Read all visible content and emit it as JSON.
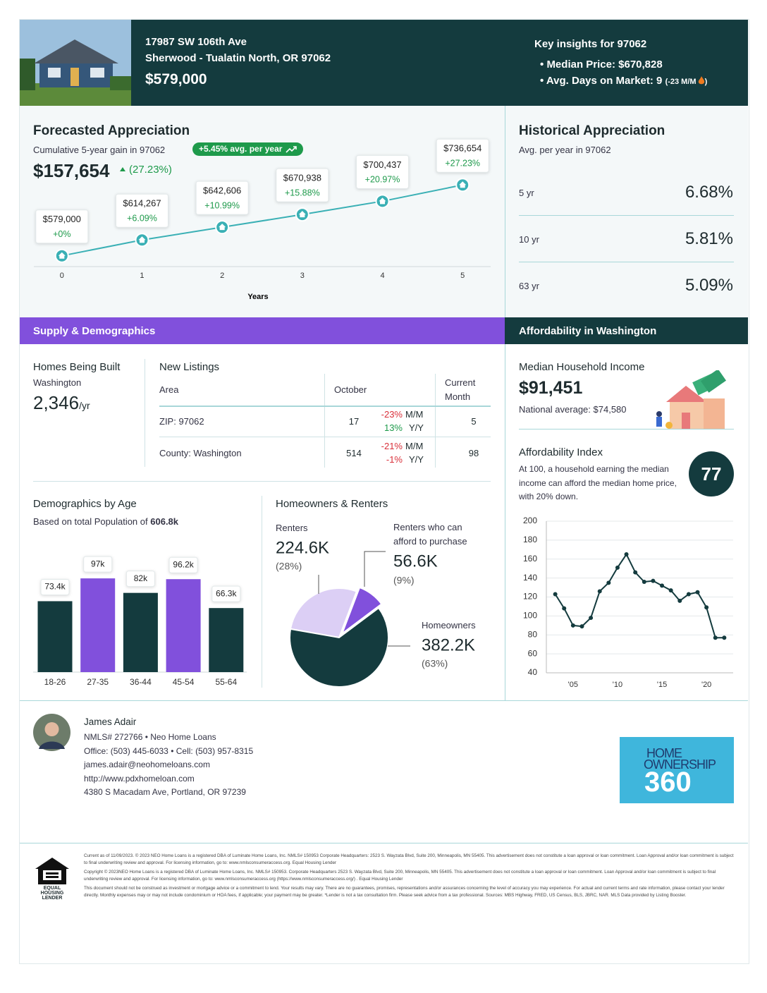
{
  "header": {
    "address": "17987 SW 106th Ave",
    "location": "Sherwood - Tualatin North, OR 97062",
    "price": "$579,000",
    "insights_title": "Key insights for 97062",
    "insights": [
      {
        "text": "Median Price: $670,828"
      },
      {
        "text": "Avg. Days on Market: 9",
        "note": "(-23 M/M",
        "note_close": ")"
      }
    ]
  },
  "historical": {
    "title": "Historical Appreciation",
    "subtitle": "Avg. per year in 97062",
    "rows": [
      {
        "label": "5 yr",
        "value": "6.68%"
      },
      {
        "label": "10 yr",
        "value": "5.81%"
      },
      {
        "label": "63 yr",
        "value": "5.09%"
      }
    ]
  },
  "sections": {
    "supply": "Supply & Demographics",
    "affordability": "Affordability in Washington"
  },
  "homes_built": {
    "title": "Homes Being Built",
    "subtitle": "Washington",
    "value": "2,346",
    "unit": "/yr"
  },
  "new_listings": {
    "title": "New Listings",
    "headers": [
      "Area",
      "October",
      "Current Month"
    ],
    "rows": [
      {
        "area": "ZIP: 97062",
        "october": "17",
        "mm": "-23%",
        "mm_unit": "M/M",
        "yy": "13%",
        "yy_unit": "Y/Y",
        "current": "5"
      },
      {
        "area": "County: Washington",
        "october": "514",
        "mm": "-21%",
        "mm_unit": "M/M",
        "yy": "-1%",
        "yy_unit": "Y/Y",
        "current": "98"
      }
    ]
  },
  "income": {
    "title": "Median Household Income",
    "value": "$91,451",
    "note": "National average: $74,580"
  },
  "affordability_index": {
    "title": "Affordability Index",
    "description": "At 100, a household earning the median income can afford the median home price, with 20% down.",
    "value": "77"
  },
  "chart_data": [
    {
      "type": "line",
      "title": "Forecasted Appreciation",
      "subtitle": "Cumulative 5-year gain in 97062",
      "badge": "+5.45% avg. per year",
      "summary_value": "$157,654",
      "summary_change": "(27.23%)",
      "x_label": "Years",
      "x": [
        0,
        1,
        2,
        3,
        4,
        5
      ],
      "xlim": [
        -0.35,
        5.35
      ],
      "xticks": [
        0,
        1,
        2,
        3,
        4,
        5
      ],
      "ylim": [
        555000,
        850000
      ],
      "series": [
        {
          "color": "#3ab0b5",
          "values": [
            579000,
            614267,
            642606,
            670938,
            700437,
            736654
          ],
          "value_labels": [
            "$579,000",
            "$614,267",
            "$642,606",
            "$670,938",
            "$700,437",
            "$736,654"
          ],
          "change_labels": [
            "+0%",
            "+6.09%",
            "+10.99%",
            "+15.88%",
            "+20.97%",
            "+27.23%"
          ]
        }
      ]
    },
    {
      "type": "bar",
      "title": "Demographics by Age",
      "subtitle": "Based on total Population of",
      "subtitle_value": "606.8k",
      "categories": [
        "18-26",
        "27-35",
        "36-44",
        "45-54",
        "55-64"
      ],
      "values": [
        73.4,
        97,
        82,
        96.2,
        66.3
      ],
      "value_labels": [
        "73.4k",
        "97k",
        "82k",
        "96.2k",
        "66.3k"
      ],
      "colors": [
        "#143b3e",
        "#8150dc",
        "#143b3e",
        "#8150dc",
        "#143b3e"
      ],
      "ylim": [
        0,
        100
      ]
    },
    {
      "type": "pie",
      "title": "Homeowners & Renters",
      "categories": [
        "Renters",
        "Renters who can afford to purchase",
        "Homeowners"
      ],
      "values": [
        224.6,
        56.6,
        382.2
      ],
      "value_labels": [
        "224.6K",
        "56.6K",
        "382.2K"
      ],
      "shares": [
        28,
        9,
        63
      ],
      "share_labels": [
        "(28%)",
        "(9%)",
        "(63%)"
      ],
      "colors": [
        "#dccff5",
        "#8150dc",
        "#143b3e"
      ]
    },
    {
      "type": "line",
      "x": [
        2003,
        2004,
        2005,
        2006,
        2007,
        2008,
        2009,
        2010,
        2011,
        2012,
        2013,
        2014,
        2015,
        2016,
        2017,
        2018,
        2019,
        2020,
        2021,
        2022
      ],
      "xlim": [
        2002,
        2023
      ],
      "xticks": [
        {
          "value": 2005,
          "label": "'05"
        },
        {
          "value": 2010,
          "label": "'10"
        },
        {
          "value": 2015,
          "label": "'15"
        },
        {
          "value": 2020,
          "label": "'20"
        }
      ],
      "ylim": [
        40,
        200
      ],
      "yticks": [
        40,
        60,
        80,
        100,
        120,
        140,
        160,
        180,
        200
      ],
      "grid": true,
      "series": [
        {
          "color": "#143b3e",
          "values": [
            123,
            108,
            90,
            89,
            98,
            126,
            135,
            151,
            165,
            146,
            136,
            137,
            132,
            127,
            116,
            123,
            125,
            109,
            77,
            77
          ]
        }
      ]
    }
  ],
  "agent": {
    "name": "James Adair",
    "lines": [
      "NMLS# 272766 • Neo Home Loans",
      "Office: (503) 445-6033 • Cell: (503) 957-8315",
      "james.adair@neohomeloans.com",
      "http://www.pdxhomeloan.com",
      "4380 S Macadam Ave, Portland, OR 97239"
    ]
  },
  "logo": {
    "line1": "HOME",
    "line2": "OWNERSHIP",
    "line3": "360"
  },
  "footer": {
    "ehl": "EQUAL HOUSING LENDER",
    "disclaimers": [
      "Current as of 11/09/2023. © 2023 NEO Home Loans is a registered DBA of Luminate Home Loans, Inc. NMLS# 150953 Corporate Headquarters: 2523 S. Wayzata Blvd, Suite 200, Minneapolis, MN 55405. This advertisement does not constitute a loan approval or loan commitment. Loan Approval and/or loan commitment is subject to final underwriting review and approval. For licensing information, go to: www.nmlsconsumeraccess.org. Equal Housing Lender",
      "Copyright © 2023NEO Home Loans is a registered DBA of Luminate Home Loans, Inc. NMLS# 150953. Corporate Headquarters 2523 S. Wayzata Blvd, Suite 200, Minneapolis, MN 55405. This advertisement does not constitute a loan approval or loan commitment. Loan Approval and/or loan commitment is subject to final underwriting review and approval. For licensing information, go to: www.nmlsconsumeraccess.org (https://www.nmlsconsumeraccess.org/) . Equal Housing Lender",
      "This document should not be construed as investment or mortgage advice or a commitment to lend. Your results may vary. There are no guarantees, promises, representations and/or assurances concerning the level of accuracy you may experience. For actual and current terms and rate information, please contact your lender directly. Monthly expenses may or may not include condominium or HOA fees, if applicable; your payment may be greater. *Lender is not a tax consultation firm. Please seek advice from a tax professional. Sources: MBS Highway, FRED, US Census, BLS, JBRC, NAR. MLS Data provided by Listing Booster."
    ]
  }
}
